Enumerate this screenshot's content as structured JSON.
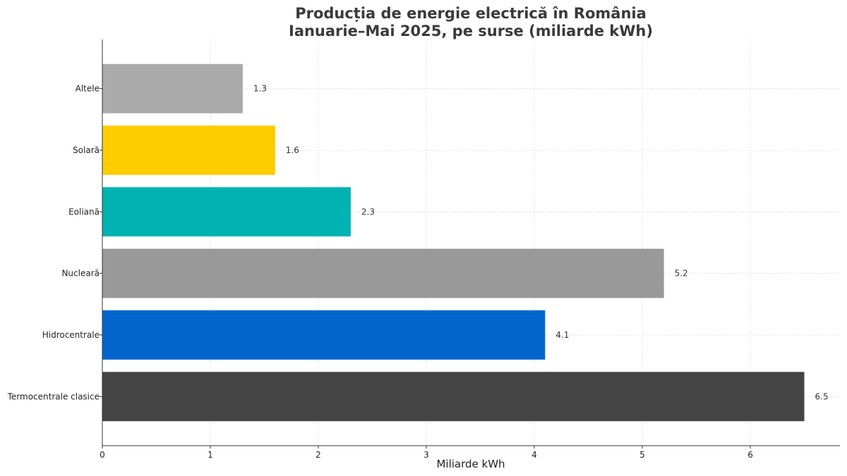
{
  "chart_data": {
    "type": "bar",
    "orientation": "horizontal",
    "title_lines": [
      "Producția de energie electrică în România",
      "Ianuarie–Mai 2025, pe surse (miliarde kWh)"
    ],
    "xlabel": "Miliarde kWh",
    "ylabel": "",
    "xlim": [
      0,
      6.83
    ],
    "x_ticks": [
      "0",
      "1",
      "2",
      "3",
      "4",
      "5",
      "6"
    ],
    "grid": true,
    "categories": [
      "Termocentrale clasice",
      "Hidrocentrale",
      "Nucleară",
      "Eoliană",
      "Solară",
      "Altele"
    ],
    "values": [
      6.5,
      4.1,
      5.2,
      2.3,
      1.6,
      1.3
    ],
    "value_labels": [
      "6.5",
      "4.1",
      "5.2",
      "2.3",
      "1.6",
      "1.3"
    ],
    "colors": [
      "#444444",
      "#0066cc",
      "#999999",
      "#00b2b2",
      "#ffcc00",
      "#aaaaaa"
    ]
  }
}
